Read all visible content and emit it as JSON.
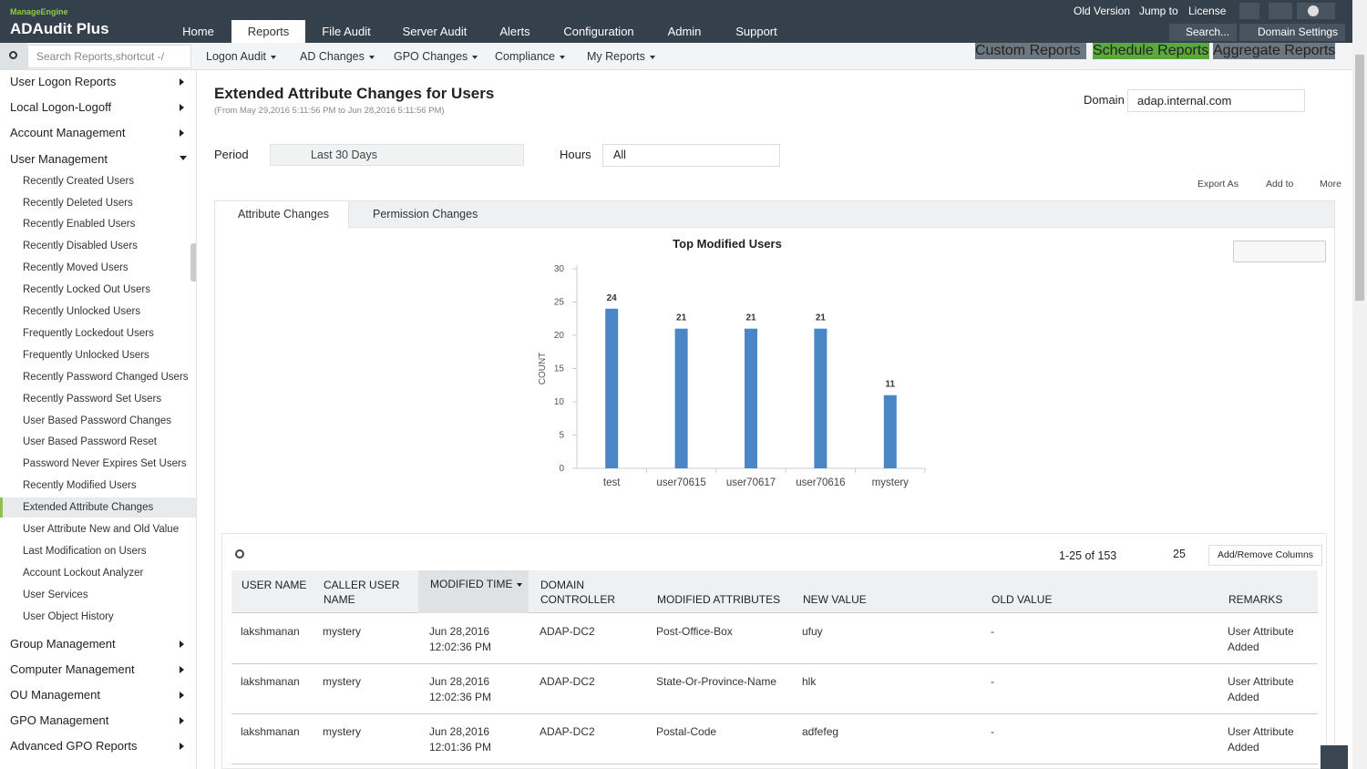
{
  "header": {
    "brand": "ManageEngine",
    "product": "ADAudit Plus",
    "nav": [
      {
        "label": "Home"
      },
      {
        "label": "Reports",
        "active": true
      },
      {
        "label": "File Audit"
      },
      {
        "label": "Server Audit"
      },
      {
        "label": "Alerts"
      },
      {
        "label": "Configuration"
      },
      {
        "label": "Admin"
      },
      {
        "label": "Support"
      }
    ],
    "links": [
      "Old Version",
      "Jump to",
      "License"
    ],
    "search": "Search...",
    "domain_settings": "Domain Settings"
  },
  "subnav": {
    "search_placeholder": "Search Reports,shortcut -/",
    "menus": [
      "Logon Audit",
      "AD Changes",
      "GPO Changes",
      "Compliance",
      "My Reports"
    ],
    "buttons": [
      "Custom Reports",
      "Schedule Reports",
      "Aggregate Reports"
    ]
  },
  "sidebar": {
    "groups": [
      {
        "label": "User Logon Reports"
      },
      {
        "label": "Local Logon-Logoff"
      },
      {
        "label": "Account Management"
      },
      {
        "label": "User Management",
        "items": [
          {
            "label": "Recently Created Users"
          },
          {
            "label": "Recently Deleted Users"
          },
          {
            "label": "Recently Enabled Users"
          },
          {
            "label": "Recently Disabled Users"
          },
          {
            "label": "Recently Moved Users"
          },
          {
            "label": "Recently Locked Out Users"
          },
          {
            "label": "Recently Unlocked Users"
          },
          {
            "label": "Frequently Lockedout Users"
          },
          {
            "label": "Frequently Unlocked Users"
          },
          {
            "label": "Recently Password Changed Users"
          },
          {
            "label": "Recently Password Set Users"
          },
          {
            "label": "User Based Password Changes"
          },
          {
            "label": "User Based Password Reset"
          },
          {
            "label": "Password Never Expires Set Users"
          },
          {
            "label": "Recently Modified Users"
          },
          {
            "label": "Extended Attribute Changes",
            "selected": true
          },
          {
            "label": "User Attribute New and Old Value"
          },
          {
            "label": "Last Modification on Users"
          },
          {
            "label": "Account Lockout Analyzer"
          },
          {
            "label": "User Services"
          },
          {
            "label": "User Object History"
          }
        ]
      },
      {
        "label": "Group Management"
      },
      {
        "label": "Computer Management"
      },
      {
        "label": "OU Management"
      },
      {
        "label": "GPO Management"
      },
      {
        "label": "Advanced GPO Reports"
      }
    ]
  },
  "report": {
    "title": "Extended Attribute Changes for Users",
    "subtitle": "(From May 29,2016 5:11:56 PM to Jun 28,2016 5:11:56 PM)",
    "domain_label": "Domain",
    "domain": "adap.internal.com",
    "period_label": "Period",
    "period": "Last 30 Days",
    "hours_label": "Hours",
    "hours": "All",
    "actions": [
      "Export As",
      "Add to",
      "More"
    ],
    "tabs": [
      "Attribute Changes",
      "Permission Changes"
    ]
  },
  "chart_data": {
    "type": "bar",
    "title": "Top Modified Users",
    "y_label": "COUNT",
    "categories": [
      "test",
      "user70615",
      "user70617",
      "user70616",
      "mystery"
    ],
    "values": [
      24,
      21,
      21,
      21,
      11
    ],
    "color": "#4a86c5",
    "ylim": [
      0,
      30
    ],
    "yticks": [
      0,
      5,
      10,
      15,
      20,
      25,
      30
    ]
  },
  "table": {
    "pagination": "1-25 of 153",
    "page_size": "25",
    "add_remove": "Add/Remove Columns",
    "columns": [
      "USER NAME",
      "CALLER USER NAME",
      "MODIFIED TIME",
      "DOMAIN CONTROLLER",
      "MODIFIED ATTRIBUTES",
      "NEW VALUE",
      "OLD VALUE",
      "REMARKS"
    ],
    "rows": [
      [
        "lakshmanan",
        "mystery",
        "Jun 28,2016 12:02:36 PM",
        "ADAP-DC2",
        "Post-Office-Box",
        "ufuy",
        "-",
        "User Attribute Added"
      ],
      [
        "lakshmanan",
        "mystery",
        "Jun 28,2016 12:02:36 PM",
        "ADAP-DC2",
        "State-Or-Province-Name",
        "hlk",
        "-",
        "User Attribute Added"
      ],
      [
        "lakshmanan",
        "mystery",
        "Jun 28,2016 12:01:36 PM",
        "ADAP-DC2",
        "Postal-Code",
        "adfefeg",
        "-",
        "User Attribute Added"
      ]
    ]
  }
}
